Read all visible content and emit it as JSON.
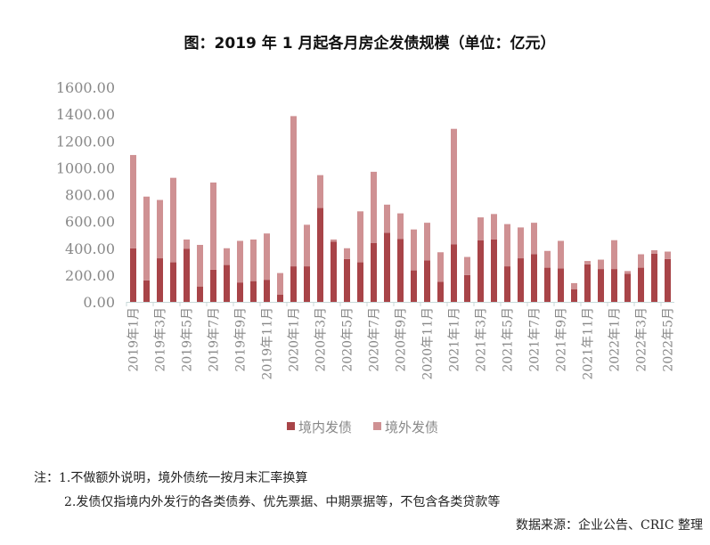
{
  "chart_data": {
    "type": "bar",
    "stacked": true,
    "title": "图：2019 年 1 月起各月房企发债规模（单位：亿元）",
    "xlabel": "",
    "ylabel": "",
    "ylim": [
      0,
      1600
    ],
    "yticks": [
      "0.00",
      "200.00",
      "400.00",
      "600.00",
      "800.00",
      "1000.00",
      "1200.00",
      "1400.00",
      "1600.00"
    ],
    "grid": false,
    "legend": "bottom",
    "categories": [
      "2019年1月",
      "2019年2月",
      "2019年3月",
      "2019年4月",
      "2019年5月",
      "2019年6月",
      "2019年7月",
      "2019年8月",
      "2019年9月",
      "2019年10月",
      "2019年11月",
      "2019年12月",
      "2020年1月",
      "2020年2月",
      "2020年3月",
      "2020年4月",
      "2020年5月",
      "2020年6月",
      "2020年7月",
      "2020年8月",
      "2020年9月",
      "2020年10月",
      "2020年11月",
      "2020年12月",
      "2021年1月",
      "2021年2月",
      "2021年3月",
      "2021年4月",
      "2021年5月",
      "2021年6月",
      "2021年7月",
      "2021年8月",
      "2021年9月",
      "2021年10月",
      "2021年11月",
      "2021年12月",
      "2022年1月",
      "2022年2月",
      "2022年3月",
      "2022年4月",
      "2022年5月"
    ],
    "series": [
      {
        "name": "境内发债",
        "color": "#a84448",
        "values": [
          400,
          160,
          325,
          295,
          395,
          115,
          240,
          275,
          145,
          155,
          165,
          55,
          265,
          265,
          700,
          450,
          320,
          295,
          440,
          515,
          470,
          235,
          310,
          150,
          430,
          200,
          460,
          465,
          265,
          325,
          355,
          255,
          250,
          95,
          280,
          245,
          245,
          210,
          255,
          360,
          320
        ]
      },
      {
        "name": "境外发债",
        "color": "#cf9193",
        "values": [
          695,
          625,
          435,
          630,
          70,
          310,
          650,
          125,
          310,
          310,
          345,
          160,
          1120,
          310,
          245,
          15,
          80,
          380,
          530,
          210,
          190,
          305,
          280,
          220,
          860,
          135,
          170,
          190,
          315,
          230,
          235,
          125,
          205,
          45,
          25,
          70,
          215,
          20,
          100,
          25,
          55
        ]
      }
    ]
  },
  "notes": {
    "line1": "注：1.不做额外说明，境外债统一按月末汇率换算",
    "line2": "2.发债仅指境内外发行的各类债券、优先票据、中期票据等，不包含各类贷款等",
    "source": "数据来源：企业公告、CRIC 整理"
  }
}
